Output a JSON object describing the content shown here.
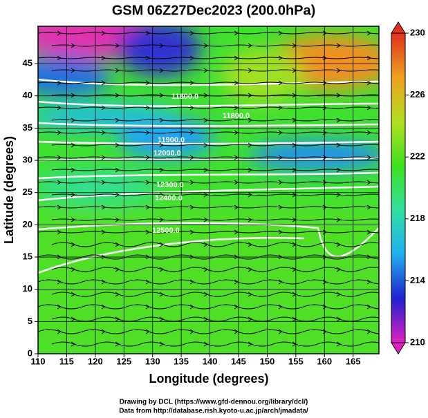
{
  "chart_data": {
    "type": "map",
    "title": "GSM 06Z27Dec2023 (200.0hPa)",
    "x_label": "Longitude (degrees)",
    "y_label": "Latitude  (degrees)",
    "xlim": [
      110,
      169.5
    ],
    "xticks": [
      110,
      115,
      120,
      125,
      130,
      135,
      140,
      145,
      150,
      155,
      160,
      165
    ],
    "ylim": [
      0,
      50.8
    ],
    "yticks": [
      0,
      5,
      10,
      15,
      20,
      25,
      30,
      35,
      40,
      45
    ],
    "grid": true,
    "colorbar": {
      "lim": [
        210,
        230
      ],
      "ticks": [
        210,
        214,
        218,
        222,
        226,
        230
      ],
      "colors": [
        "#e020c0",
        "#2020d0",
        "#20b0f0",
        "#30e0a0",
        "#40e020",
        "#b0e020",
        "#f0a020",
        "#e03020"
      ]
    },
    "contour_labels": [
      "11800.0",
      "11900.0",
      "12000.0",
      "12300.0",
      "12400.0",
      "12500.0"
    ],
    "footer": [
      "Drawing by DCL (https://www.gfd-dennou.org/library/dcl/)",
      "Data from http://database.rish.kyoto-u.ac.jp/arch/jmadata/"
    ]
  }
}
